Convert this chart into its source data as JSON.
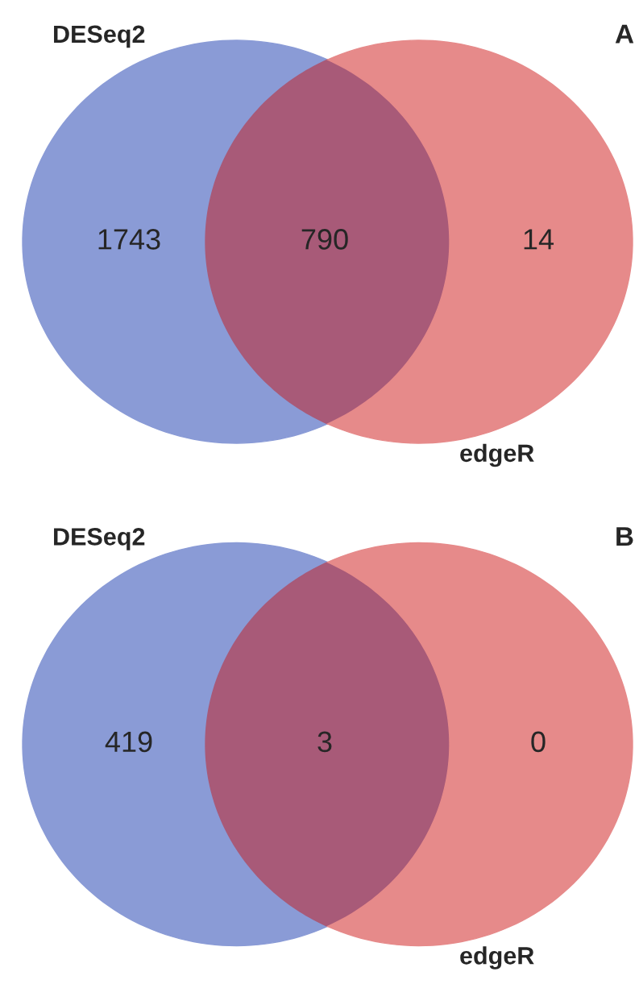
{
  "chart_data": [
    {
      "type": "other",
      "title": "A",
      "data_labels": true,
      "categories": [
        null,
        null,
        null
      ],
      "values": [
        1743,
        790,
        14
      ],
      "colors": [
        "#8a9bd6",
        "#a85a78",
        "#e68a8a"
      ],
      "annotations": [
        "DESeq2",
        "edgeR"
      ]
    },
    {
      "type": "other",
      "title": "B",
      "data_labels": true,
      "categories": [
        null,
        null,
        null
      ],
      "values": [
        419,
        3,
        0
      ],
      "colors": [
        "#8a9bd6",
        "#a85a78",
        "#e68a8a"
      ],
      "annotations": [
        "DESeq2",
        "edgeR"
      ]
    }
  ]
}
